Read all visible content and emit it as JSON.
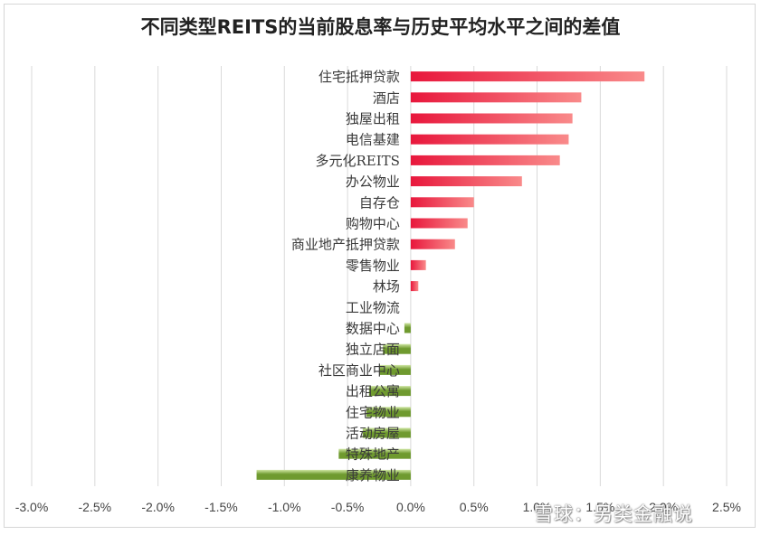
{
  "chart_data": {
    "type": "bar",
    "orientation": "horizontal",
    "title": "不同类型REITS的当前股息率与历史平均水平之间的差值",
    "xlabel": "",
    "ylabel": "",
    "xlim": [
      -0.03,
      0.025
    ],
    "tick_values": [
      -0.03,
      -0.025,
      -0.02,
      -0.015,
      -0.01,
      -0.005,
      0,
      0.005,
      0.01,
      0.015,
      0.02,
      0.025
    ],
    "tick_labels": [
      "-3.0%",
      "-2.5%",
      "-2.0%",
      "-1.5%",
      "-1.0%",
      "-0.5%",
      "0.0%",
      "0.5%",
      "1.0%",
      "1.5%",
      "2.0%",
      "2.5%"
    ],
    "grid": true,
    "legend": "none",
    "categories": [
      "住宅抵押贷款",
      "酒店",
      "独屋出租",
      "电信基建",
      "多元化REITS",
      "办公物业",
      "自存仓",
      "购物中心",
      "商业地产抵押贷款",
      "零售物业",
      "林场",
      "工业物流",
      "数据中心",
      "独立店面",
      "社区商业中心",
      "出租公寓",
      "住宅物业",
      "活动房屋",
      "特殊地产",
      "康养物业"
    ],
    "values": [
      0.0185,
      0.0135,
      0.0128,
      0.0125,
      0.0118,
      0.0088,
      0.005,
      0.0045,
      0.0035,
      0.0012,
      0.0006,
      0.0,
      -0.0005,
      -0.0022,
      -0.0025,
      -0.0033,
      -0.0035,
      -0.0038,
      -0.0057,
      -0.0122
    ],
    "colors": {
      "positive_dark": "#e8173c",
      "positive_light": "#f98a8a",
      "negative_dark": "#6f9a2f",
      "negative_light": "#cfe6a3",
      "grid": "#d9d9d9"
    }
  },
  "watermark": "雪球：另类金融说"
}
